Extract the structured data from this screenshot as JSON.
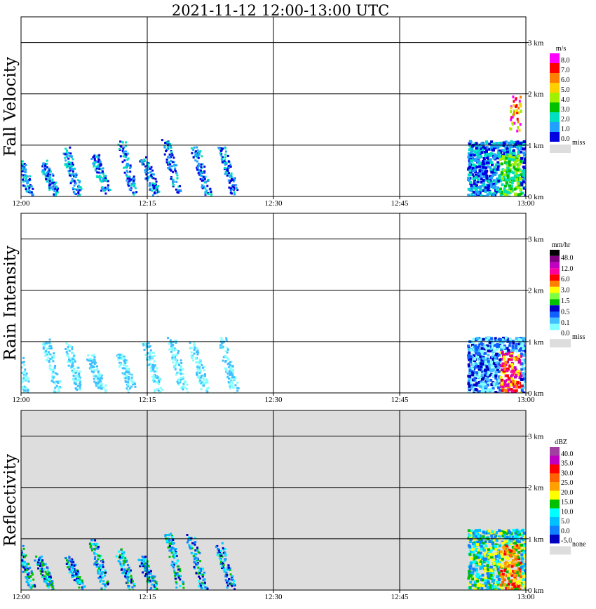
{
  "title": "2021-11-12   12:00-13:00 UTC",
  "chart_data": [
    {
      "type": "heatmap",
      "panel": "Fall Velocity",
      "ylabel": "Fall Velocity",
      "xlabel": "",
      "x_ticks": [
        "12:00",
        "12:15",
        "12:30",
        "12:45",
        "13:00"
      ],
      "y_ticks": [
        "0 km",
        "1 km",
        "2 km",
        "3 km"
      ],
      "xlim": [
        "12:00",
        "13:00"
      ],
      "ylim_km": [
        0,
        3.5
      ],
      "grid": true,
      "background": "#ffffff",
      "colorbar": {
        "unit": "m/s",
        "labels": [
          "8.0",
          "7.0",
          "6.0",
          "5.0",
          "4.0",
          "3.0",
          "2.0",
          "1.0",
          "0.0"
        ],
        "colors": [
          "#ff00ff",
          "#ff0000",
          "#ff8000",
          "#ffd000",
          "#a0f000",
          "#00c000",
          "#00e0c0",
          "#20a0ff",
          "#0000e0"
        ],
        "missing_label": "miss",
        "missing_color": "#dddddd"
      },
      "features": [
        {
          "label": "light precipitation streaks",
          "time_start": "12:00",
          "time_end": "12:27",
          "height_km": [
            0,
            1.1
          ],
          "dominant_value": "0.0-2.0"
        },
        {
          "label": "rain cell",
          "time_start": "12:53",
          "time_end": "13:00",
          "height_km": [
            0,
            1.1
          ],
          "dominant_value": "0.0-4.0"
        },
        {
          "label": "high fall velocity column",
          "time_start": "12:58",
          "time_end": "12:59",
          "height_km": [
            1.3,
            2.0
          ],
          "dominant_value": "4.0-8.0"
        }
      ]
    },
    {
      "type": "heatmap",
      "panel": "Rain Intensity",
      "ylabel": "Rain Intensity",
      "xlabel": "",
      "x_ticks": [
        "12:00",
        "12:15",
        "12:30",
        "12:45",
        "13:00"
      ],
      "y_ticks": [
        "0 km",
        "1 km",
        "2 km",
        "3 km"
      ],
      "xlim": [
        "12:00",
        "13:00"
      ],
      "ylim_km": [
        0,
        3.5
      ],
      "grid": true,
      "background": "#ffffff",
      "colorbar": {
        "unit": "mm/hr",
        "labels": [
          "48.0",
          "12.0",
          "6.0",
          "3.0",
          "1.5",
          "0.5",
          "0.1",
          "0.0"
        ],
        "colors": [
          "#000000",
          "#800080",
          "#c000c0",
          "#ff00a0",
          "#ff0000",
          "#ff8000",
          "#ffff00",
          "#80ff40",
          "#00c000",
          "#0000c0",
          "#1060ff",
          "#40c0ff",
          "#80ffff",
          "#ffffff"
        ],
        "missing_label": "miss",
        "missing_color": "#dddddd"
      },
      "features": [
        {
          "label": "light rain streaks",
          "time_start": "12:00",
          "time_end": "12:27",
          "height_km": [
            0,
            1.0
          ],
          "dominant_value": "0.0-0.5"
        },
        {
          "label": "rain cell",
          "time_start": "12:53",
          "time_end": "13:00",
          "height_km": [
            0,
            1.1
          ],
          "dominant_value": "0.5-6.0"
        }
      ]
    },
    {
      "type": "heatmap",
      "panel": "Reflectivity",
      "ylabel": "Reflectivity",
      "xlabel": "",
      "x_ticks": [
        "12:00",
        "12:15",
        "12:30",
        "12:45",
        "13:00"
      ],
      "y_ticks": [
        "0 km",
        "1 km",
        "2 km",
        "3 km"
      ],
      "xlim": [
        "12:00",
        "13:00"
      ],
      "ylim_km": [
        0,
        3.5
      ],
      "grid": true,
      "background": "#dddddd",
      "colorbar": {
        "unit": "dBZ",
        "labels": [
          "40.0",
          "35.0",
          "30.0",
          "25.0",
          "20.0",
          "15.0",
          "10.0",
          "5.0",
          "0.0",
          "-5.0"
        ],
        "colors": [
          "#a040a0",
          "#c000c0",
          "#ff0000",
          "#ff6000",
          "#ffa000",
          "#ffff00",
          "#00c000",
          "#00ffff",
          "#00c0ff",
          "#1080ff",
          "#0000c0"
        ],
        "missing_label": "none",
        "missing_color": "#dddddd"
      },
      "features": [
        {
          "label": "weak echo streaks",
          "time_start": "12:00",
          "time_end": "12:27",
          "height_km": [
            0,
            1.1
          ],
          "dominant_value": "-5.0-10.0"
        },
        {
          "label": "convective rain cell",
          "time_start": "12:53",
          "time_end": "13:00",
          "height_km": [
            0,
            1.2
          ],
          "dominant_value": "10.0-30.0"
        }
      ]
    }
  ]
}
